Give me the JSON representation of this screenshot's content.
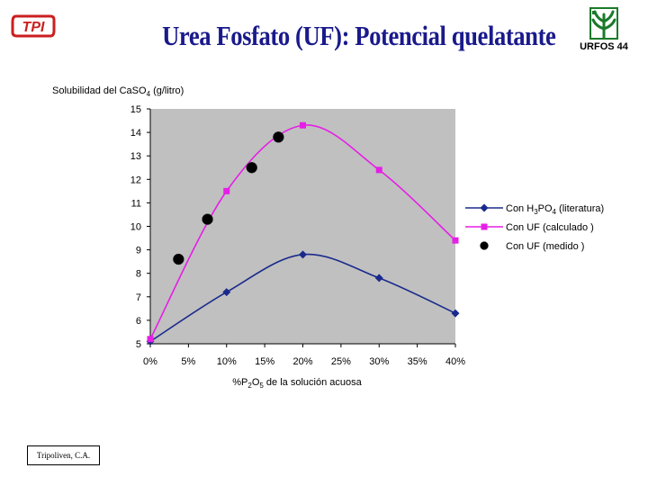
{
  "header": {
    "title": "Urea Fosfato (UF): Potencial quelatante",
    "logo_left_text": "TPI",
    "logo_right_text": "URFOS 44"
  },
  "footer": {
    "text": "Tripoliven, C.A."
  },
  "colors": {
    "title": "#1a1a8c",
    "series_h3po4": "#1a2a8c",
    "series_uf_calc": "#e61ee6",
    "series_uf_med": "#000000",
    "plot_bg": "#c0c0c0",
    "logo_red": "#cc1f1f",
    "logo_green": "#1a7a2a"
  },
  "chart_data": {
    "type": "line",
    "title": "",
    "ylabel_parts": {
      "pre": "Solubilidad del CaSO",
      "sub": "4",
      "post": " (g/litro)"
    },
    "xlabel_parts": {
      "pre": "%P",
      "sub1": "2",
      "mid": "O",
      "sub2": "5",
      "post": " de la solución acuosa"
    },
    "xlim": [
      0,
      40
    ],
    "ylim": [
      5,
      15
    ],
    "x_ticks": [
      0,
      5,
      10,
      15,
      20,
      25,
      30,
      35,
      40
    ],
    "x_tick_labels": [
      "0%",
      "5%",
      "10%",
      "15%",
      "20%",
      "25%",
      "30%",
      "35%",
      "40%"
    ],
    "y_ticks": [
      5,
      6,
      7,
      8,
      9,
      10,
      11,
      12,
      13,
      14,
      15
    ],
    "y_tick_labels": [
      "5",
      "6",
      "7",
      "8",
      "9",
      "10",
      "11",
      "12",
      "13",
      "14",
      "15"
    ],
    "grid": false,
    "legend_position": "right",
    "series": [
      {
        "name": "Con H3PO4 (literatura)",
        "legend_parts": {
          "pre": "Con H",
          "sub1": "3",
          "mid": "PO",
          "sub2": "4",
          "post": "  (literatura)"
        },
        "marker": "diamond",
        "color": "#1a2a8c",
        "line": true,
        "x": [
          0,
          10,
          20,
          30,
          40
        ],
        "y": [
          5.1,
          7.2,
          8.8,
          7.8,
          6.3
        ]
      },
      {
        "name": "Con UF (calculado )",
        "legend_parts": {
          "pre": "Con UF (calculado )"
        },
        "marker": "square",
        "color": "#e61ee6",
        "line": true,
        "x": [
          0,
          10,
          20,
          30,
          40
        ],
        "y": [
          5.2,
          11.5,
          14.3,
          12.4,
          9.4
        ]
      },
      {
        "name": "Con UF  (medido )",
        "legend_parts": {
          "pre": "Con UF  (medido )"
        },
        "marker": "circle",
        "color": "#000000",
        "line": false,
        "x": [
          3.7,
          7.5,
          13.3,
          16.8
        ],
        "y": [
          8.6,
          10.3,
          12.5,
          13.8
        ]
      }
    ]
  }
}
